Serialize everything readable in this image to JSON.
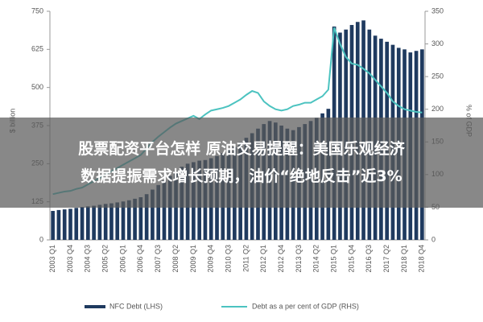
{
  "chart_data": {
    "type": "bar-line",
    "ylabel": "$ billion",
    "y2label": "% of GDP",
    "categories": [
      "2003 Q1",
      null,
      null,
      "2003 Q4",
      null,
      null,
      "2004 Q3",
      null,
      null,
      "2005 Q2",
      null,
      null,
      "2006 Q1",
      null,
      null,
      "2006 Q4",
      null,
      null,
      "2007 Q3",
      null,
      null,
      "2008 Q2",
      null,
      null,
      "2009 Q1",
      null,
      null,
      "2009 Q4",
      null,
      null,
      "2010 Q3",
      null,
      null,
      "2011 Q2",
      null,
      null,
      "2012 Q1",
      null,
      null,
      "2012 Q4",
      null,
      null,
      "2013 Q3",
      null,
      null,
      "2014 Q2",
      null,
      null,
      "2015 Q1",
      null,
      null,
      "2015 Q4",
      null,
      null,
      "2016 Q3",
      null,
      null,
      "2017 Q2",
      null,
      null,
      "2018 Q1",
      null,
      null,
      "2018 Q4"
    ],
    "series": [
      {
        "name": "NFC Debt (LHS)",
        "color": "#1f3a5f",
        "type": "bar",
        "values": [
          95,
          98,
          100,
          102,
          105,
          108,
          110,
          112,
          115,
          118,
          120,
          123,
          126,
          130,
          135,
          140,
          150,
          165,
          180,
          195,
          210,
          225,
          240,
          250,
          255,
          260,
          262,
          268,
          275,
          285,
          295,
          305,
          320,
          335,
          350,
          365,
          380,
          390,
          385,
          375,
          365,
          360,
          370,
          380,
          390,
          400,
          415,
          430,
          700,
          680,
          690,
          705,
          715,
          720,
          690,
          670,
          660,
          650,
          640,
          630,
          625,
          615,
          620,
          625
        ]
      },
      {
        "name": "Debt as a per cent of GDP (RHS)",
        "color": "#4cc3c0",
        "type": "line",
        "axis": "y2",
        "values": [
          70,
          72,
          74,
          75,
          78,
          80,
          85,
          90,
          95,
          100,
          105,
          110,
          115,
          120,
          125,
          130,
          140,
          150,
          158,
          165,
          172,
          178,
          182,
          186,
          190,
          185,
          192,
          198,
          200,
          202,
          205,
          210,
          215,
          222,
          228,
          225,
          212,
          205,
          200,
          198,
          200,
          205,
          207,
          210,
          210,
          215,
          220,
          230,
          325,
          300,
          280,
          270,
          268,
          262,
          255,
          245,
          235,
          225,
          212,
          205,
          200,
          198,
          196,
          195
        ]
      }
    ],
    "ylim": [
      0,
      750
    ],
    "yticks": [
      0,
      125,
      250,
      375,
      500,
      625,
      750
    ],
    "y2lim": [
      0,
      350
    ],
    "y2ticks": [
      0,
      50,
      100,
      150,
      200,
      250,
      300,
      350
    ],
    "headline": [
      "股票配资平台怎样 原油交易提醒：美国乐观经济",
      "数据提振需求增长预期，油价“绝地反击”近3%"
    ]
  }
}
